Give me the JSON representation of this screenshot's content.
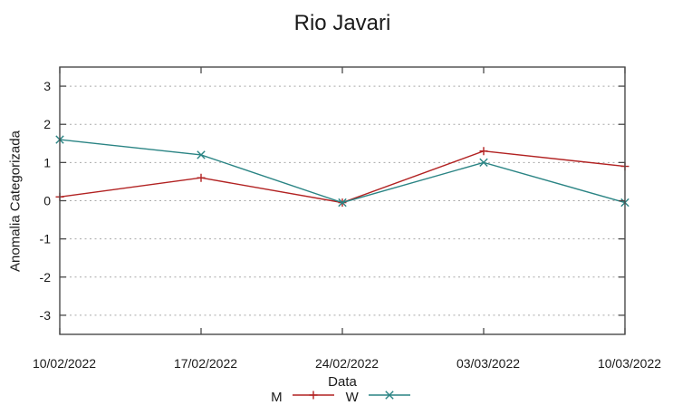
{
  "chart_data": {
    "type": "line",
    "title": "Rio Javari",
    "xlabel": "Data",
    "ylabel": "Anomalia Categorizada",
    "x_categories": [
      "10/02/2022",
      "17/02/2022",
      "24/02/2022",
      "03/03/2022",
      "10/03/2022"
    ],
    "ylim": [
      -3.5,
      3.5
    ],
    "yticks": [
      3,
      2,
      1,
      0,
      -1,
      -2,
      -3
    ],
    "grid": "horizontal-dotted",
    "legend_position": "bottom-center",
    "series": [
      {
        "name": "M",
        "marker": "plus",
        "color": "#b22222",
        "values": [
          0.1,
          0.6,
          -0.05,
          1.3,
          0.9
        ]
      },
      {
        "name": "W",
        "marker": "x",
        "color": "#2a8484",
        "values": [
          1.6,
          1.2,
          -0.05,
          1.0,
          -0.05
        ]
      }
    ]
  },
  "colors": {
    "background": "#ffffff",
    "border": "#4a4a4a",
    "grid": "#aaaaaa",
    "text": "#1a1a1a"
  }
}
